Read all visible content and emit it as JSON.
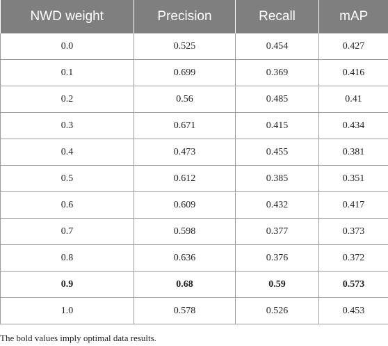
{
  "table": {
    "headers": [
      "NWD weight",
      "Precision",
      "Recall",
      "mAP"
    ],
    "rows": [
      {
        "values": [
          "0.0",
          "0.525",
          "0.454",
          "0.427"
        ],
        "bold": false
      },
      {
        "values": [
          "0.1",
          "0.699",
          "0.369",
          "0.416"
        ],
        "bold": false
      },
      {
        "values": [
          "0.2",
          "0.56",
          "0.485",
          "0.41"
        ],
        "bold": false
      },
      {
        "values": [
          "0.3",
          "0.671",
          "0.415",
          "0.434"
        ],
        "bold": false
      },
      {
        "values": [
          "0.4",
          "0.473",
          "0.455",
          "0.381"
        ],
        "bold": false
      },
      {
        "values": [
          "0.5",
          "0.612",
          "0.385",
          "0.351"
        ],
        "bold": false
      },
      {
        "values": [
          "0.6",
          "0.609",
          "0.432",
          "0.417"
        ],
        "bold": false
      },
      {
        "values": [
          "0.7",
          "0.598",
          "0.377",
          "0.373"
        ],
        "bold": false
      },
      {
        "values": [
          "0.8",
          "0.636",
          "0.376",
          "0.372"
        ],
        "bold": false
      },
      {
        "values": [
          "0.9",
          "0.68",
          "0.59",
          "0.573"
        ],
        "bold": true
      },
      {
        "values": [
          "1.0",
          "0.578",
          "0.526",
          "0.453"
        ],
        "bold": false
      }
    ]
  },
  "footnote": "The bold values imply optimal data results.",
  "colors": {
    "header_background": "#7f7f7f",
    "header_text": "#ffffff",
    "grid_lines": "#9a9a9a"
  }
}
